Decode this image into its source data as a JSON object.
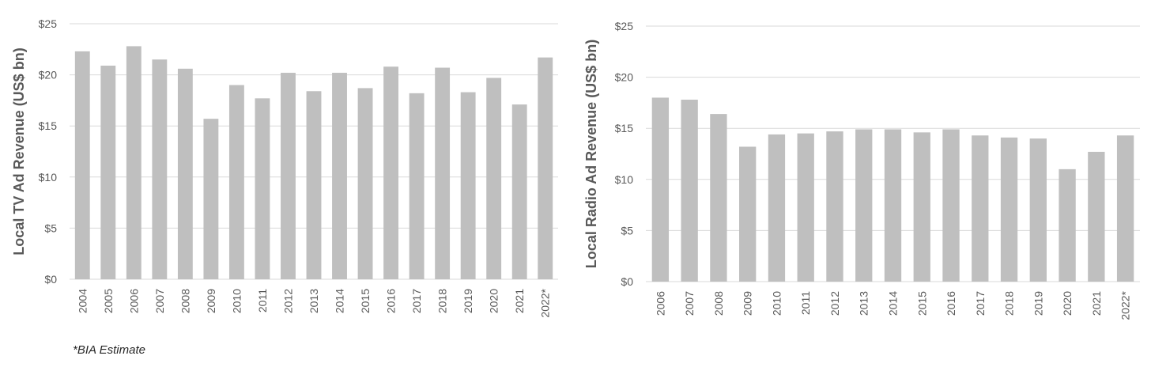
{
  "chart_data": [
    {
      "type": "bar",
      "title": "",
      "xlabel": "",
      "ylabel": "Local TV Ad Revenue (US$ bn)",
      "ylim": [
        0,
        25
      ],
      "yticks": [
        "$0",
        "$5",
        "$10",
        "$15",
        "$20",
        "$25"
      ],
      "grid": true,
      "categories": [
        "2004",
        "2005",
        "2006",
        "2007",
        "2008",
        "2009",
        "2010",
        "2011",
        "2012",
        "2013",
        "2014",
        "2015",
        "2016",
        "2017",
        "2018",
        "2019",
        "2020",
        "2021",
        "2022*"
      ],
      "values": [
        22.3,
        20.9,
        22.8,
        21.5,
        20.6,
        15.7,
        19.0,
        17.7,
        20.2,
        18.4,
        20.2,
        18.7,
        20.8,
        18.2,
        20.7,
        18.3,
        19.7,
        17.1,
        21.7
      ],
      "bar_color": "#bfbfbf"
    },
    {
      "type": "bar",
      "title": "",
      "xlabel": "",
      "ylabel": "Local Radio Ad Revenue (US$ bn)",
      "ylim": [
        0,
        25
      ],
      "yticks": [
        "$0",
        "$5",
        "$10",
        "$15",
        "$20",
        "$25"
      ],
      "grid": true,
      "categories": [
        "2006",
        "2007",
        "2008",
        "2009",
        "2010",
        "2011",
        "2012",
        "2013",
        "2014",
        "2015",
        "2016",
        "2017",
        "2018",
        "2019",
        "2020",
        "2021",
        "2022*"
      ],
      "values": [
        18.0,
        17.8,
        16.4,
        13.2,
        14.4,
        14.5,
        14.7,
        14.9,
        14.9,
        14.6,
        14.9,
        14.3,
        14.1,
        14.0,
        11.0,
        12.7,
        14.3
      ],
      "bar_color": "#bfbfbf"
    }
  ],
  "footnote": "*BIA Estimate"
}
